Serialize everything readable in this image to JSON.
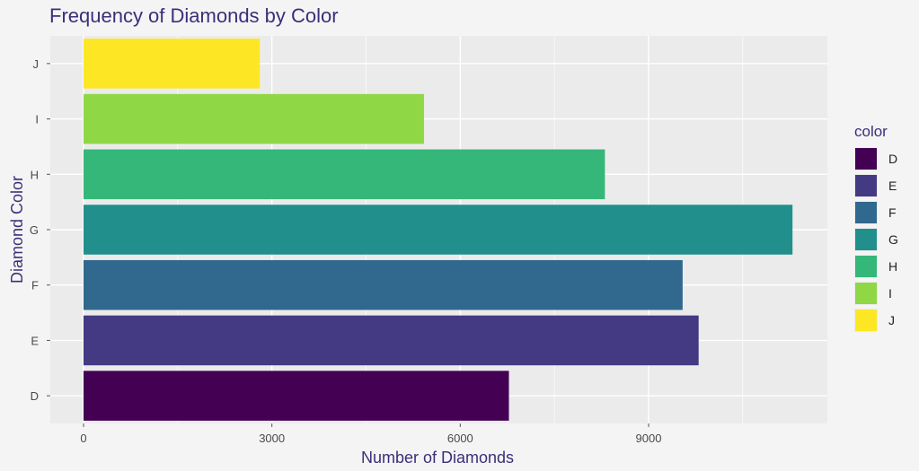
{
  "chart_data": {
    "type": "bar",
    "orientation": "horizontal",
    "title": "Frequency of Diamonds by Color",
    "xlabel": "Number of Diamonds",
    "ylabel": "Diamond Color",
    "categories": [
      "D",
      "E",
      "F",
      "G",
      "H",
      "I",
      "J"
    ],
    "values": [
      6775,
      9797,
      9542,
      11292,
      8304,
      5422,
      2808
    ],
    "colors": [
      "#440154",
      "#443983",
      "#31688E",
      "#21908C",
      "#35B779",
      "#8FD744",
      "#FDE725"
    ],
    "xlim": [
      0,
      11850
    ],
    "xticks": [
      0,
      3000,
      6000,
      9000
    ],
    "xtick_labels": [
      "0",
      "3000",
      "6000",
      "9000"
    ],
    "grid": true,
    "background": "#EBEBEB",
    "legend": {
      "title": "color",
      "position": "right",
      "items": [
        "D",
        "E",
        "F",
        "G",
        "H",
        "I",
        "J"
      ]
    }
  }
}
